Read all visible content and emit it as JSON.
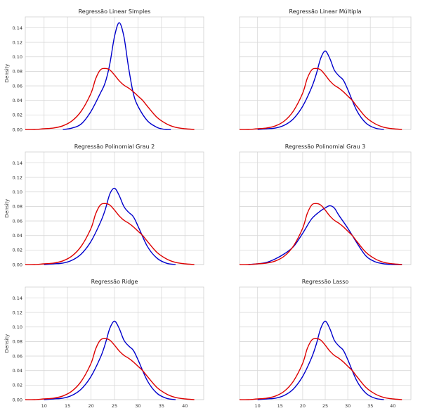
{
  "chart_data": [
    {
      "type": "line",
      "title": "Regressão Linear Simples",
      "ylabel": "Density",
      "xlim": [
        6,
        44
      ],
      "ylim": [
        0,
        0.155
      ],
      "yticks": [
        "0.00",
        "0.02",
        "0.04",
        "0.06",
        "0.08",
        "0.10",
        "0.12",
        "0.14"
      ],
      "xticks": [],
      "series": [
        {
          "color": "#0000cc",
          "x": [
            14,
            16,
            18,
            20,
            22,
            23,
            24,
            25,
            26,
            27,
            28,
            29,
            30,
            32,
            34,
            35,
            36,
            37
          ],
          "y": [
            0,
            0.002,
            0.008,
            0.025,
            0.05,
            0.064,
            0.09,
            0.128,
            0.147,
            0.128,
            0.085,
            0.05,
            0.032,
            0.012,
            0.003,
            0.001,
            0,
            0
          ]
        },
        {
          "color": "#dd0000",
          "x": [
            6,
            8,
            10,
            12,
            14,
            16,
            18,
            20,
            21,
            22,
            23,
            24,
            25,
            26,
            27,
            28,
            29,
            30,
            31,
            32,
            34,
            36,
            38,
            40,
            42
          ],
          "y": [
            0,
            0,
            0.001,
            0.002,
            0.005,
            0.012,
            0.026,
            0.05,
            0.07,
            0.082,
            0.084,
            0.082,
            0.075,
            0.067,
            0.061,
            0.057,
            0.052,
            0.046,
            0.04,
            0.032,
            0.017,
            0.008,
            0.003,
            0.001,
            0
          ]
        }
      ]
    },
    {
      "type": "line",
      "title": "Regressão Linear Múltipla",
      "ylabel": "",
      "xlim": [
        6,
        44
      ],
      "ylim": [
        0,
        0.155
      ],
      "yticks": [],
      "xticks": [],
      "series": [
        {
          "color": "#0000cc",
          "x": [
            10,
            12,
            14,
            16,
            18,
            20,
            22,
            23,
            24,
            25,
            26,
            27,
            28,
            29,
            30,
            32,
            34,
            36,
            38
          ],
          "y": [
            0,
            0.001,
            0.002,
            0.006,
            0.015,
            0.032,
            0.058,
            0.076,
            0.098,
            0.108,
            0.098,
            0.082,
            0.074,
            0.068,
            0.055,
            0.026,
            0.009,
            0.002,
            0
          ]
        },
        {
          "color": "#dd0000",
          "x": [
            6,
            8,
            10,
            12,
            14,
            16,
            18,
            20,
            21,
            22,
            23,
            24,
            25,
            26,
            27,
            28,
            29,
            30,
            31,
            32,
            34,
            36,
            38,
            40,
            42
          ],
          "y": [
            0,
            0,
            0.001,
            0.002,
            0.005,
            0.012,
            0.026,
            0.05,
            0.07,
            0.082,
            0.084,
            0.082,
            0.075,
            0.067,
            0.061,
            0.057,
            0.052,
            0.046,
            0.04,
            0.032,
            0.017,
            0.008,
            0.003,
            0.001,
            0
          ]
        }
      ]
    },
    {
      "type": "line",
      "title": "Regressão Polinomial Grau 2",
      "ylabel": "Density",
      "xlim": [
        6,
        44
      ],
      "ylim": [
        0,
        0.155
      ],
      "yticks": [
        "0.00",
        "0.02",
        "0.04",
        "0.06",
        "0.08",
        "0.10",
        "0.12",
        "0.14"
      ],
      "xticks": [],
      "series": [
        {
          "color": "#0000cc",
          "x": [
            10,
            12,
            14,
            16,
            18,
            20,
            22,
            23,
            24,
            25,
            26,
            27,
            28,
            29,
            30,
            32,
            34,
            36,
            38
          ],
          "y": [
            0,
            0.001,
            0.002,
            0.006,
            0.015,
            0.032,
            0.058,
            0.075,
            0.097,
            0.105,
            0.095,
            0.08,
            0.072,
            0.066,
            0.053,
            0.025,
            0.009,
            0.002,
            0
          ]
        },
        {
          "color": "#dd0000",
          "x": [
            6,
            8,
            10,
            12,
            14,
            16,
            18,
            20,
            21,
            22,
            23,
            24,
            25,
            26,
            27,
            28,
            29,
            30,
            31,
            32,
            34,
            36,
            38,
            40,
            42
          ],
          "y": [
            0,
            0,
            0.001,
            0.002,
            0.005,
            0.012,
            0.026,
            0.05,
            0.07,
            0.082,
            0.084,
            0.082,
            0.075,
            0.067,
            0.061,
            0.057,
            0.052,
            0.046,
            0.04,
            0.032,
            0.017,
            0.008,
            0.003,
            0.001,
            0
          ]
        }
      ]
    },
    {
      "type": "line",
      "title": "Regressão Polinomial Grau 3",
      "ylabel": "",
      "xlim": [
        6,
        44
      ],
      "ylim": [
        0,
        0.155
      ],
      "yticks": [],
      "xticks": [],
      "series": [
        {
          "color": "#0000cc",
          "x": [
            8,
            10,
            12,
            14,
            16,
            18,
            20,
            22,
            24,
            25,
            26,
            27,
            28,
            30,
            32,
            34,
            36,
            38,
            40,
            42
          ],
          "y": [
            0,
            0.001,
            0.003,
            0.008,
            0.015,
            0.025,
            0.043,
            0.063,
            0.074,
            0.078,
            0.081,
            0.078,
            0.068,
            0.05,
            0.03,
            0.012,
            0.004,
            0.001,
            0,
            0
          ]
        },
        {
          "color": "#dd0000",
          "x": [
            6,
            8,
            10,
            12,
            14,
            16,
            18,
            20,
            21,
            22,
            23,
            24,
            25,
            26,
            27,
            28,
            29,
            30,
            31,
            32,
            34,
            36,
            38,
            40,
            42
          ],
          "y": [
            0,
            0,
            0.001,
            0.002,
            0.005,
            0.012,
            0.026,
            0.05,
            0.07,
            0.082,
            0.084,
            0.082,
            0.075,
            0.067,
            0.061,
            0.057,
            0.052,
            0.046,
            0.04,
            0.032,
            0.017,
            0.008,
            0.003,
            0.001,
            0
          ]
        }
      ]
    },
    {
      "type": "line",
      "title": "Regressão Ridge",
      "ylabel": "Density",
      "xlim": [
        6,
        44
      ],
      "ylim": [
        0,
        0.155
      ],
      "yticks": [
        "0.00",
        "0.02",
        "0.04",
        "0.06",
        "0.08",
        "0.10",
        "0.12",
        "0.14"
      ],
      "xticks": [
        "10",
        "15",
        "20",
        "25",
        "30",
        "35",
        "40"
      ],
      "series": [
        {
          "color": "#0000cc",
          "x": [
            10,
            12,
            14,
            16,
            18,
            20,
            22,
            23,
            24,
            25,
            26,
            27,
            28,
            29,
            30,
            32,
            34,
            36,
            38
          ],
          "y": [
            0,
            0.001,
            0.002,
            0.006,
            0.015,
            0.032,
            0.058,
            0.076,
            0.098,
            0.108,
            0.098,
            0.082,
            0.074,
            0.068,
            0.055,
            0.026,
            0.009,
            0.002,
            0
          ]
        },
        {
          "color": "#dd0000",
          "x": [
            6,
            8,
            10,
            12,
            14,
            16,
            18,
            20,
            21,
            22,
            23,
            24,
            25,
            26,
            27,
            28,
            29,
            30,
            31,
            32,
            34,
            36,
            38,
            40,
            42
          ],
          "y": [
            0,
            0,
            0.001,
            0.002,
            0.005,
            0.012,
            0.026,
            0.05,
            0.07,
            0.082,
            0.084,
            0.082,
            0.075,
            0.067,
            0.061,
            0.057,
            0.052,
            0.046,
            0.04,
            0.032,
            0.017,
            0.008,
            0.003,
            0.001,
            0
          ]
        }
      ]
    },
    {
      "type": "line",
      "title": "Regressão Lasso",
      "ylabel": "",
      "xlim": [
        6,
        44
      ],
      "ylim": [
        0,
        0.155
      ],
      "yticks": [],
      "xticks": [
        "10",
        "15",
        "20",
        "25",
        "30",
        "35",
        "40"
      ],
      "series": [
        {
          "color": "#0000cc",
          "x": [
            10,
            12,
            14,
            16,
            18,
            20,
            22,
            23,
            24,
            25,
            26,
            27,
            28,
            29,
            30,
            32,
            34,
            36,
            38
          ],
          "y": [
            0,
            0.001,
            0.002,
            0.006,
            0.015,
            0.032,
            0.058,
            0.076,
            0.098,
            0.108,
            0.098,
            0.082,
            0.074,
            0.068,
            0.055,
            0.026,
            0.009,
            0.002,
            0
          ]
        },
        {
          "color": "#dd0000",
          "x": [
            6,
            8,
            10,
            12,
            14,
            16,
            18,
            20,
            21,
            22,
            23,
            24,
            25,
            26,
            27,
            28,
            29,
            30,
            31,
            32,
            34,
            36,
            38,
            40,
            42
          ],
          "y": [
            0,
            0,
            0.001,
            0.002,
            0.005,
            0.012,
            0.026,
            0.05,
            0.07,
            0.082,
            0.084,
            0.082,
            0.075,
            0.067,
            0.061,
            0.057,
            0.052,
            0.046,
            0.04,
            0.032,
            0.017,
            0.008,
            0.003,
            0.001,
            0
          ]
        }
      ]
    }
  ]
}
